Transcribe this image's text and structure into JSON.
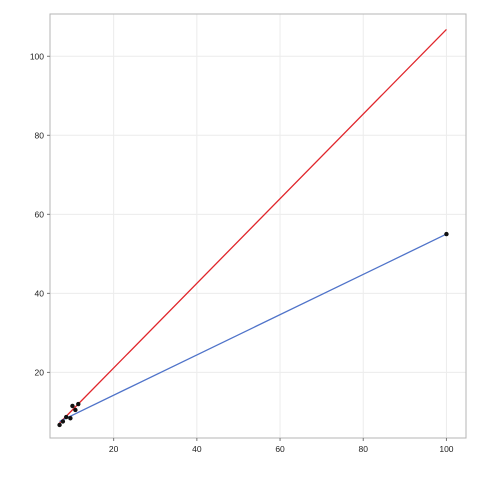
{
  "chart_data": {
    "type": "scatter",
    "title": "",
    "xlabel": "",
    "ylabel": "",
    "xlim": [
      4.7,
      104.7
    ],
    "ylim": [
      3.4,
      110.7
    ],
    "grid": true,
    "legend": "none",
    "x_ticks": [
      20,
      40,
      60,
      80,
      100
    ],
    "y_ticks": [
      20,
      40,
      60,
      80,
      100
    ],
    "points": [
      {
        "x": 7.0,
        "y": 6.7
      },
      {
        "x": 7.8,
        "y": 7.6
      },
      {
        "x": 8.6,
        "y": 8.7
      },
      {
        "x": 9.6,
        "y": 8.4
      },
      {
        "x": 10.1,
        "y": 11.5
      },
      {
        "x": 10.8,
        "y": 10.5
      },
      {
        "x": 11.5,
        "y": 12.0
      },
      {
        "x": 100.0,
        "y": 55.0
      }
    ],
    "series": [
      {
        "type": "line",
        "color": "#e0252b",
        "x": [
          7.0,
          100.0
        ],
        "y": [
          7.2,
          106.8
        ]
      },
      {
        "type": "line",
        "color": "#4f73c9",
        "x": [
          7.0,
          100.0
        ],
        "y": [
          7.6,
          55.0
        ]
      }
    ],
    "colors": {
      "background": "#ffffff",
      "panel_border": "#b5b5b5",
      "grid": "#ececec",
      "point": "#111111"
    }
  }
}
